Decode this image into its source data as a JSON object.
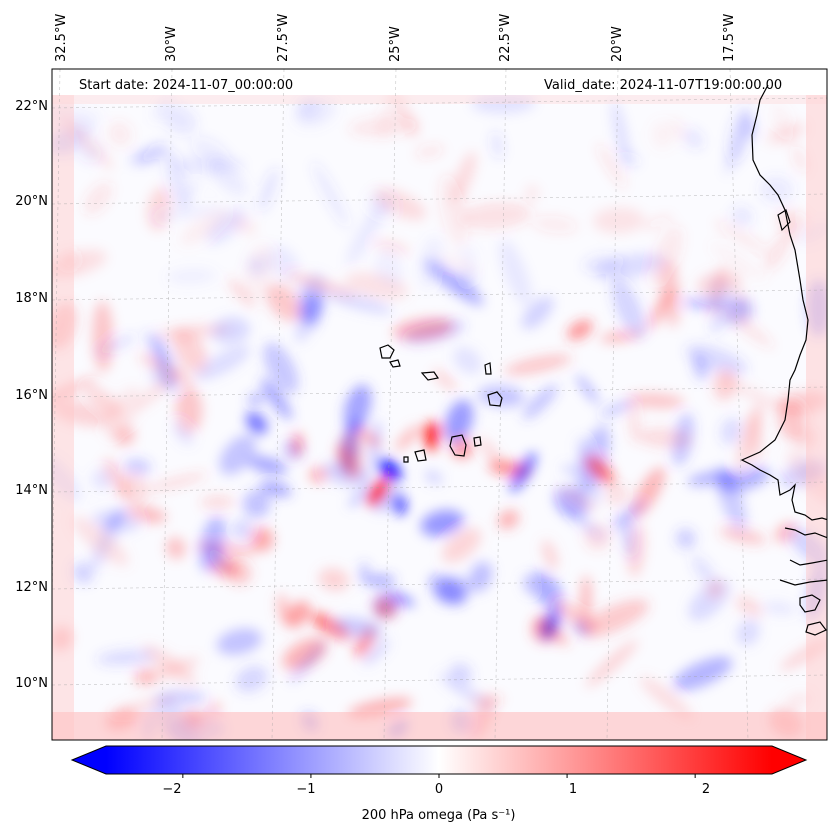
{
  "map": {
    "start_date_text": "Start date: 2024-11-07_00:00:00",
    "valid_date_text": "Valid_date: 2024-11-07T19:00:00.00",
    "lon_labels": [
      "32.5°W",
      "30°W",
      "27.5°W",
      "25°W",
      "22.5°W",
      "20°W",
      "17.5°W"
    ],
    "lat_labels": [
      "22°N",
      "20°N",
      "18°N",
      "16°N",
      "14°N",
      "12°N",
      "10°N"
    ],
    "projection_extent": {
      "lon_range": [
        -32.9,
        -15.3
      ],
      "lat_range": [
        8.9,
        22.8
      ]
    },
    "field": "omega",
    "level": "200 hPa",
    "gridlines": true
  },
  "colorbar": {
    "label_text": "200 hPa omega (Pa s⁻¹)",
    "ticks": [
      "−2",
      "−1",
      "0",
      "1",
      "2"
    ],
    "tick_values": [
      -2,
      -1,
      0,
      1,
      2
    ],
    "range": [
      -2.6,
      2.6
    ],
    "colormap": "bwr",
    "extend": "both",
    "colors": {
      "min": "#0000ff",
      "mid": "#ffffff",
      "max": "#ff0000"
    }
  }
}
